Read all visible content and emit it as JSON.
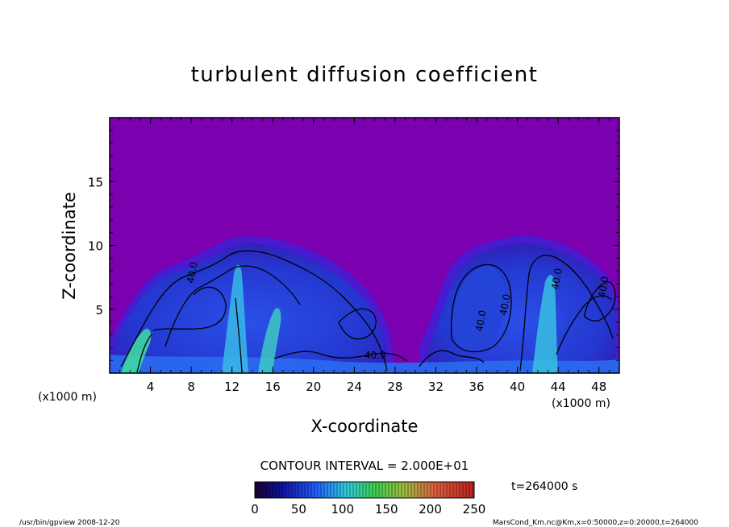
{
  "chart_data": {
    "type": "heatmap",
    "title": "turbulent diffusion coefficient",
    "xlabel": "X-coordinate",
    "ylabel": "Z-coordinate",
    "x_unit": "(x1000 m)",
    "y_unit": "(x1000 m)",
    "xlim": [
      0,
      50
    ],
    "ylim": [
      0,
      20
    ],
    "x_ticks": [
      4,
      8,
      12,
      16,
      20,
      24,
      28,
      32,
      36,
      40,
      44,
      48
    ],
    "y_ticks": [
      5,
      10,
      15
    ],
    "colorbar": {
      "min": 0,
      "max": 250,
      "ticks": [
        0,
        50,
        100,
        150,
        200,
        250
      ]
    },
    "contour_interval_text": "CONTOUR INTERVAL = 2.000E+01",
    "contour_labels": [
      "40.0",
      "40.0",
      "40.0",
      "40.0",
      "40.0",
      "40.0"
    ],
    "time_text": "t=264000 s",
    "footer_left": "/usr/bin/gpview   2008-12-20",
    "footer_right": "MarsCond_Km.nc@Km,x=0:50000,z=0:20000,t=264000",
    "colors": {
      "background_field": "#7a00b0",
      "low": "#1a1aa0",
      "mid": "#2e6cff",
      "high": "#40e0a0"
    },
    "plumes": [
      {
        "name": "left-plume",
        "x_center": 16,
        "x_half_width": 12,
        "top": 10.6
      },
      {
        "name": "right-plume",
        "x_center": 42,
        "x_half_width": 8.5,
        "top": 11.5
      }
    ]
  }
}
